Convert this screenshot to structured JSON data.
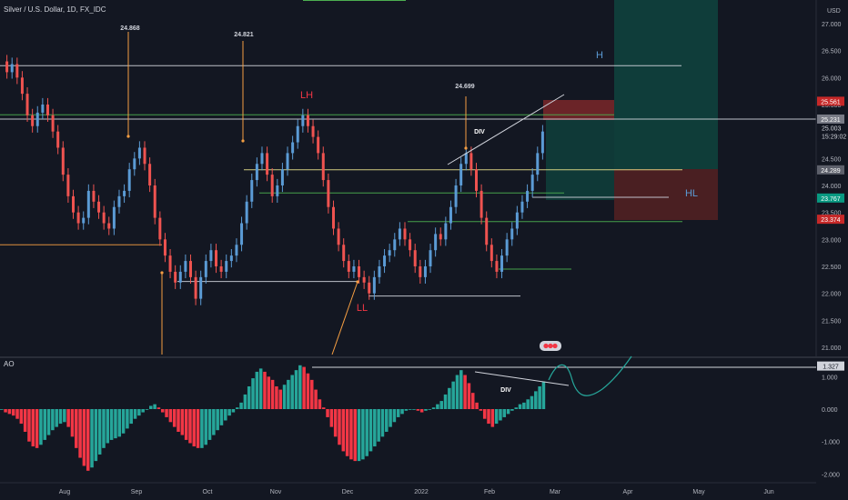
{
  "header": {
    "symbol_title": "Silver / U.S. Dollar, 1D, FX_IDC",
    "currency": "USD",
    "indicator": "AO"
  },
  "chart_data": [
    {
      "type": "candlestick",
      "title": "Silver / U.S. Dollar, 1D, FX_IDC",
      "y_ticks": [
        27.0,
        26.5,
        26.0,
        25.5,
        25.0,
        24.5,
        24.0,
        23.5,
        23.0,
        22.5,
        22.0,
        21.5,
        21.0
      ],
      "y_tick_labels": [
        "27.000",
        "26.500",
        "26.000",
        "25.500",
        "25.000",
        "24.500",
        "24.000",
        "23.500",
        "23.000",
        "22.500",
        "22.000",
        "21.500",
        "21.000"
      ],
      "ylim": [
        20.95,
        27.35
      ],
      "x_labels": [
        "Aug",
        "Sep",
        "Oct",
        "Nov",
        "Dec",
        "2022",
        "Feb",
        "Mar",
        "Apr",
        "May",
        "Jun"
      ],
      "price_badges": [
        {
          "label": "25.561",
          "value": 25.561,
          "color": "#c62828"
        },
        {
          "label": "25.231",
          "value": 25.231,
          "color": "#787b86"
        },
        {
          "label": "24.289",
          "value": 24.289,
          "color": "#5d606b"
        },
        {
          "label": "23.767",
          "value": 23.767,
          "color": "#089981"
        },
        {
          "label": "23.374",
          "value": 23.374,
          "color": "#c62828"
        }
      ],
      "last_price": {
        "label": "25.003",
        "time": "15:29:02",
        "value": 25.003
      },
      "annotations": [
        {
          "text": "24.868",
          "value": 24.868
        },
        {
          "text": "24.821",
          "value": 24.821
        },
        {
          "text": "24.699",
          "value": 24.699
        },
        {
          "text": "LH",
          "value": 25.3,
          "color": "#f23645"
        },
        {
          "text": "LL",
          "value": 21.7,
          "color": "#f23645"
        },
        {
          "text": "H",
          "value": 26.2,
          "color": "#5b9bd5"
        },
        {
          "text": "HL",
          "value": 23.85,
          "color": "#5b9bd5"
        },
        {
          "text": "DIV",
          "value": 24.95,
          "color": "#ffffff"
        }
      ],
      "levels": [
        {
          "value": 26.22,
          "color": "#d1d4dc"
        },
        {
          "value": 25.23,
          "color": "#d1d4dc"
        },
        {
          "value": 25.31,
          "color": "#4caf50"
        },
        {
          "value": 24.29,
          "color": "#e6e08a"
        },
        {
          "value": 23.86,
          "color": "#4caf50"
        },
        {
          "value": 23.33,
          "color": "#4caf50"
        },
        {
          "value": 22.45,
          "color": "#4caf50"
        },
        {
          "value": 22.22,
          "color": "#d1d4dc"
        },
        {
          "value": 21.95,
          "color": "#d1d4dc"
        },
        {
          "value": 23.78,
          "color": "#d1d4dc"
        },
        {
          "value": 22.9,
          "color": "#f59e42"
        }
      ],
      "up_color": "#5b9bd5",
      "down_color": "#ef5350"
    },
    {
      "type": "bar",
      "title": "AO",
      "y_ticks": [
        1.0,
        0.0,
        -1.0,
        -2.0
      ],
      "y_tick_labels": [
        "1.000",
        "0.000",
        "-1.000",
        "-2.000"
      ],
      "ylim": [
        -2.2,
        1.45
      ],
      "badge": {
        "label": "1.327",
        "value": 1.327
      },
      "annotations": [
        {
          "text": "DIV",
          "value": 0.6
        }
      ],
      "values": [
        0.0,
        -0.1,
        -0.15,
        -0.2,
        -0.3,
        -0.45,
        -0.7,
        -1.0,
        -1.15,
        -1.2,
        -1.1,
        -0.95,
        -0.8,
        -0.65,
        -0.55,
        -0.45,
        -0.4,
        -0.55,
        -0.85,
        -1.2,
        -1.5,
        -1.75,
        -1.9,
        -1.8,
        -1.6,
        -1.4,
        -1.2,
        -1.05,
        -0.95,
        -0.9,
        -0.85,
        -0.75,
        -0.6,
        -0.45,
        -0.3,
        -0.2,
        -0.1,
        0.0,
        0.1,
        0.15,
        0.05,
        -0.1,
        -0.25,
        -0.4,
        -0.55,
        -0.7,
        -0.8,
        -0.95,
        -1.05,
        -1.15,
        -1.2,
        -1.2,
        -1.1,
        -0.95,
        -0.8,
        -0.65,
        -0.5,
        -0.35,
        -0.2,
        -0.1,
        0.05,
        0.2,
        0.45,
        0.7,
        0.95,
        1.15,
        1.25,
        1.15,
        1.0,
        0.9,
        0.7,
        0.6,
        0.75,
        0.9,
        1.05,
        1.2,
        1.35,
        1.3,
        1.1,
        0.9,
        0.6,
        0.3,
        0.05,
        -0.25,
        -0.55,
        -0.85,
        -1.1,
        -1.3,
        -1.45,
        -1.55,
        -1.6,
        -1.6,
        -1.55,
        -1.45,
        -1.3,
        -1.15,
        -1.0,
        -0.85,
        -0.7,
        -0.55,
        -0.4,
        -0.25,
        -0.15,
        -0.05,
        0.0,
        0.0,
        -0.05,
        -0.1,
        -0.05,
        0.0,
        0.05,
        0.15,
        0.25,
        0.45,
        0.65,
        0.85,
        1.05,
        1.2,
        1.05,
        0.8,
        0.5,
        0.2,
        -0.05,
        -0.3,
        -0.45,
        -0.55,
        -0.45,
        -0.35,
        -0.25,
        -0.15,
        -0.05,
        0.05,
        0.15,
        0.2,
        0.3,
        0.4,
        0.55,
        0.7,
        0.85
      ],
      "up_color": "#26a69a",
      "down_color": "#f23645"
    }
  ]
}
